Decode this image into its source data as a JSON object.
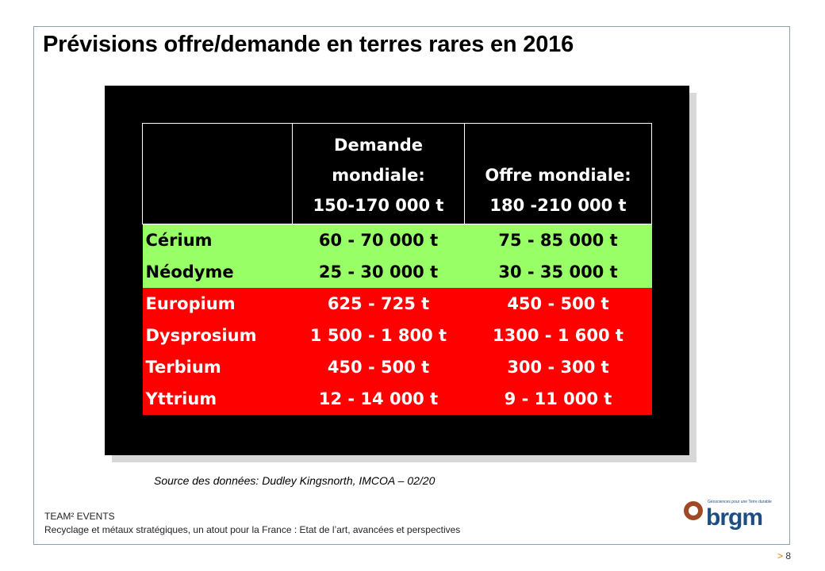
{
  "title": "Prévisions offre/demande en terres rares en 2016",
  "table": {
    "headers": [
      [],
      [
        "Demande",
        "mondiale:",
        "150-170 000 t"
      ],
      [
        "Offre mondiale:",
        "180 -210 000 t"
      ]
    ],
    "rows": [
      {
        "name": "Cérium",
        "demand": "60 - 70 000 t",
        "supply": "75 - 85 000 t",
        "status": "green"
      },
      {
        "name": "Néodyme",
        "demand": "25 - 30 000 t",
        "supply": "30 - 35 000 t",
        "status": "green"
      },
      {
        "name": "Europium",
        "demand": "625 - 725 t",
        "supply": "450 - 500 t",
        "status": "red"
      },
      {
        "name": "Dysprosium",
        "demand": "1 500 - 1 800 t",
        "supply": "1300 - 1 600 t",
        "status": "red"
      },
      {
        "name": "Terbium",
        "demand": "450 - 500 t",
        "supply": "300 - 300 t",
        "status": "red"
      },
      {
        "name": "Yttrium",
        "demand": "12 - 14 000 t",
        "supply": "9 - 11 000 t",
        "status": "red"
      }
    ]
  },
  "source": "Source des données: Dudley Kingsnorth, IMCOA – 02/20",
  "footer": {
    "event": "TEAM² EVENTS",
    "subtitle": "Recyclage et métaux stratégiques, un atout pour la France : Etat de l’art, avancées et perspectives"
  },
  "logo": {
    "word": "brgm",
    "tagline": "Géosciences pour une Terre durable"
  },
  "page": {
    "arrow": ">",
    "number": "8"
  },
  "colors": {
    "shortage_row": "#ff0000",
    "surplus_row": "#99ff66",
    "frame_border": "#8aa2b8",
    "brand_blue": "#1d4e83"
  }
}
